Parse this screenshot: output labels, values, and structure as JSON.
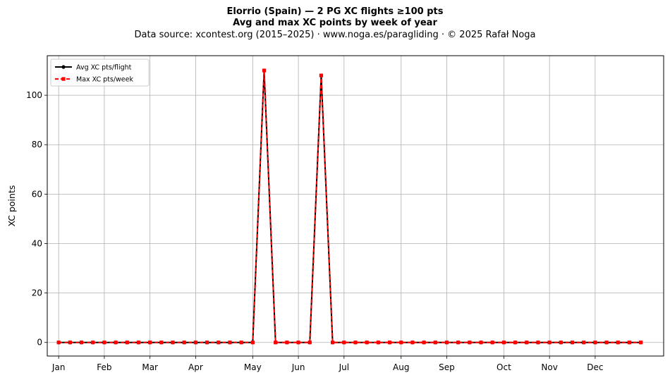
{
  "header": {
    "title": "Elorrio (Spain)  —  2 PG XC flights ≥100 pts",
    "subtitle": "Avg and max XC points by week of year",
    "source": "Data source: xcontest.org (2015–2025)  ·  www.noga.es/paragliding  ·  © 2025 Rafał Noga"
  },
  "chart_data": {
    "type": "line",
    "xlabel": "",
    "ylabel": "XC points",
    "xlim": [
      0,
      54
    ],
    "ylim": [
      -5.5,
      116
    ],
    "yticks": [
      0,
      20,
      40,
      60,
      80,
      100
    ],
    "month_ticks": [
      {
        "label": "Jan",
        "x": 1
      },
      {
        "label": "Feb",
        "x": 5
      },
      {
        "label": "Mar",
        "x": 9
      },
      {
        "label": "Apr",
        "x": 13
      },
      {
        "label": "May",
        "x": 18
      },
      {
        "label": "Jun",
        "x": 22
      },
      {
        "label": "Jul",
        "x": 26
      },
      {
        "label": "Aug",
        "x": 31
      },
      {
        "label": "Sep",
        "x": 35
      },
      {
        "label": "Oct",
        "x": 40
      },
      {
        "label": "Nov",
        "x": 44
      },
      {
        "label": "Dec",
        "x": 48
      }
    ],
    "x": [
      1,
      2,
      3,
      4,
      5,
      6,
      7,
      8,
      9,
      10,
      11,
      12,
      13,
      14,
      15,
      16,
      17,
      18,
      19,
      20,
      21,
      22,
      23,
      24,
      25,
      26,
      27,
      28,
      29,
      30,
      31,
      32,
      33,
      34,
      35,
      36,
      37,
      38,
      39,
      40,
      41,
      42,
      43,
      44,
      45,
      46,
      47,
      48,
      49,
      50,
      51,
      52
    ],
    "series": [
      {
        "name": "Avg XC pts/flight",
        "color": "#000000",
        "style": "solid",
        "marker": "circle",
        "values": [
          0,
          0,
          0,
          0,
          0,
          0,
          0,
          0,
          0,
          0,
          0,
          0,
          0,
          0,
          0,
          0,
          0,
          0,
          110,
          0,
          0,
          0,
          0,
          108,
          0,
          0,
          0,
          0,
          0,
          0,
          0,
          0,
          0,
          0,
          0,
          0,
          0,
          0,
          0,
          0,
          0,
          0,
          0,
          0,
          0,
          0,
          0,
          0,
          0,
          0,
          0,
          0
        ]
      },
      {
        "name": "Max XC pts/week",
        "color": "#ff0000",
        "style": "dashed",
        "marker": "square",
        "values": [
          0,
          0,
          0,
          0,
          0,
          0,
          0,
          0,
          0,
          0,
          0,
          0,
          0,
          0,
          0,
          0,
          0,
          0,
          110,
          0,
          0,
          0,
          0,
          108,
          0,
          0,
          0,
          0,
          0,
          0,
          0,
          0,
          0,
          0,
          0,
          0,
          0,
          0,
          0,
          0,
          0,
          0,
          0,
          0,
          0,
          0,
          0,
          0,
          0,
          0,
          0,
          0
        ]
      }
    ],
    "grid": true,
    "legend_position": "top-left"
  }
}
